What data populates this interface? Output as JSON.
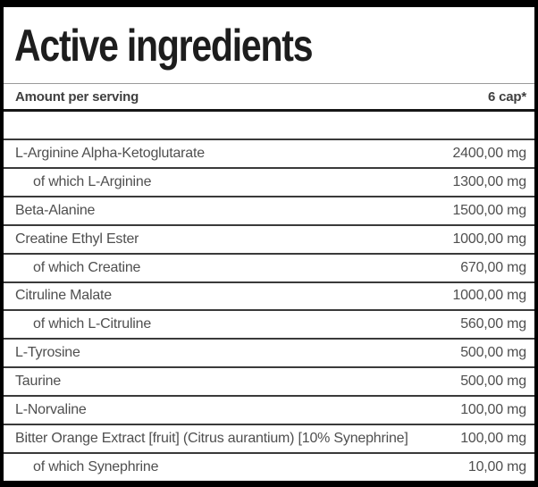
{
  "panel": {
    "title": "Active ingredients"
  },
  "table": {
    "header": {
      "amount_label": "Amount per serving",
      "serving_label": "6 cap*"
    },
    "rows": [
      {
        "name": "L-Arginine Alpha-Ketoglutarate",
        "amount": "2400,00 mg",
        "indent": false
      },
      {
        "name": "of which L-Arginine",
        "amount": "1300,00 mg",
        "indent": true
      },
      {
        "name": "Beta-Alanine",
        "amount": "1500,00 mg",
        "indent": false
      },
      {
        "name": "Creatine Ethyl Ester",
        "amount": "1000,00 mg",
        "indent": false
      },
      {
        "name": "of which Creatine",
        "amount": "670,00 mg",
        "indent": true
      },
      {
        "name": "Citruline Malate",
        "amount": "1000,00 mg",
        "indent": false
      },
      {
        "name": "of which L-Citruline",
        "amount": "560,00 mg",
        "indent": true
      },
      {
        "name": "L-Tyrosine",
        "amount": "500,00 mg",
        "indent": false
      },
      {
        "name": "Taurine",
        "amount": "500,00 mg",
        "indent": false
      },
      {
        "name": "L-Norvaline",
        "amount": "100,00 mg",
        "indent": false
      },
      {
        "name": "Bitter Orange Extract [fruit] (Citrus aurantium) [10% Synephrine]",
        "amount": "100,00 mg",
        "indent": false
      },
      {
        "name": "of which Synephrine",
        "amount": "10,00 mg",
        "indent": true
      }
    ]
  },
  "colors": {
    "border": "#000000",
    "title_text": "#1d1d1d",
    "header_text": "#3f3f3f",
    "row_text": "#4f4f4f",
    "separator": "#3a3a3a",
    "title_underline": "#9a9a9a",
    "header_underline": "#161616",
    "background": "#ffffff"
  }
}
